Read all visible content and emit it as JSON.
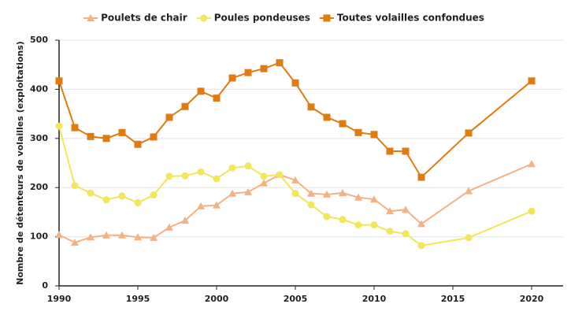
{
  "chart_data": {
    "type": "line",
    "y_label": "Nombre de détenteurs de volailles (exploitations)",
    "x": [
      1990,
      1991,
      1992,
      1993,
      1994,
      1995,
      1996,
      1997,
      1998,
      1999,
      2000,
      2001,
      2002,
      2003,
      2004,
      2005,
      2006,
      2007,
      2008,
      2009,
      2010,
      2011,
      2012,
      2013,
      2016,
      2020
    ],
    "series": [
      {
        "name": "Poulets de chair",
        "color": "#f4b183",
        "marker": "triangle",
        "values": [
          104,
          88,
          99,
          103,
          103,
          99,
          98,
          119,
          133,
          162,
          164,
          188,
          191,
          209,
          226,
          215,
          188,
          186,
          189,
          180,
          176,
          152,
          155,
          126,
          193,
          248
        ]
      },
      {
        "name": "Poules pondeuses",
        "color": "#f2e65a",
        "marker": "circle",
        "values": [
          325,
          204,
          189,
          175,
          183,
          169,
          185,
          223,
          224,
          232,
          218,
          240,
          244,
          223,
          226,
          188,
          165,
          141,
          135,
          124,
          124,
          111,
          106,
          82,
          98,
          152
        ]
      },
      {
        "name": "Toutes volailles confondues",
        "color": "#e07b10",
        "marker": "square",
        "values": [
          417,
          322,
          304,
          300,
          312,
          288,
          303,
          343,
          365,
          396,
          382,
          423,
          434,
          442,
          454,
          413,
          364,
          343,
          330,
          312,
          308,
          274,
          274,
          221,
          311,
          417
        ]
      }
    ],
    "xlim": [
      1990,
      2022
    ],
    "xticks": [
      1990,
      1995,
      2000,
      2005,
      2010,
      2015,
      2020
    ],
    "ylim": [
      0,
      500
    ],
    "yticks": [
      0,
      100,
      200,
      300,
      400,
      500
    ],
    "grid": true
  }
}
